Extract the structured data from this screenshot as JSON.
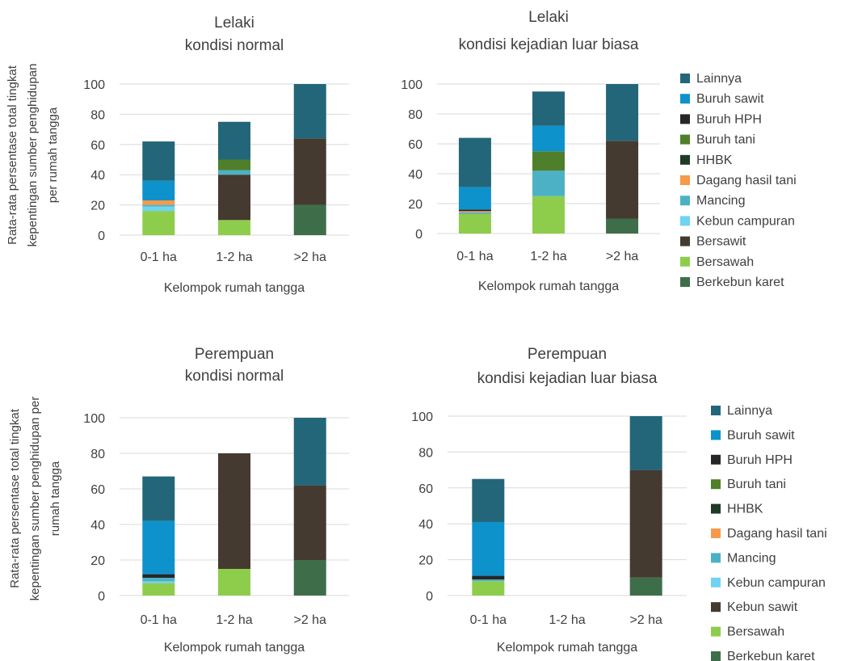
{
  "chart_data": [
    {
      "type": "bar",
      "stacked": true,
      "title": [
        "Lelaki",
        "kondisi normal"
      ],
      "xlabel": "Kelompok rumah tangga",
      "ylabel": [
        "Rata-rata persentase total tingkat",
        "kepentingan sumber penghidupan",
        "per rumah tangga"
      ],
      "ylim": [
        0,
        100
      ],
      "yticks": [
        "0",
        "20",
        "40",
        "60",
        "80",
        "100"
      ],
      "grid": true,
      "categories": [
        "0-1 ha",
        "1-2 ha",
        ">2 ha"
      ],
      "series": [
        {
          "name": "Berkebun karet",
          "values": [
            0,
            0,
            20
          ]
        },
        {
          "name": "Bersawah",
          "values": [
            16,
            10,
            0
          ]
        },
        {
          "name": "Bersawit",
          "values": [
            0,
            30,
            44
          ]
        },
        {
          "name": "Kebun campuran",
          "values": [
            3,
            0,
            0
          ]
        },
        {
          "name": "Mancing",
          "values": [
            1,
            3,
            0
          ]
        },
        {
          "name": "Dagang hasil tani",
          "values": [
            3,
            0,
            0
          ]
        },
        {
          "name": "HHBK",
          "values": [
            0,
            0,
            0
          ]
        },
        {
          "name": "Buruh tani",
          "values": [
            0,
            7,
            0
          ]
        },
        {
          "name": "Buruh HPH",
          "values": [
            0,
            0,
            0
          ]
        },
        {
          "name": "Buruh sawit",
          "values": [
            13,
            0,
            0
          ]
        },
        {
          "name": "Lainnya",
          "values": [
            26,
            25,
            36
          ]
        }
      ]
    },
    {
      "type": "bar",
      "stacked": true,
      "title": [
        "Lelaki",
        "kondisi kejadian luar biasa"
      ],
      "xlabel": "Kelompok rumah tangga",
      "ylim": [
        0,
        100
      ],
      "yticks": [
        "0",
        "20",
        "40",
        "60",
        "80",
        "100"
      ],
      "grid": true,
      "categories": [
        "0-1 ha",
        "1-2 ha",
        ">2 ha"
      ],
      "series": [
        {
          "name": "Berkebun karet",
          "values": [
            0,
            0,
            10
          ]
        },
        {
          "name": "Bersawah",
          "values": [
            13,
            25,
            0
          ]
        },
        {
          "name": "Bersawit",
          "values": [
            0,
            0,
            52
          ]
        },
        {
          "name": "Kebun campuran",
          "values": [
            0,
            0,
            0
          ]
        },
        {
          "name": "Mancing",
          "values": [
            1,
            17,
            0
          ]
        },
        {
          "name": "Dagang hasil tani",
          "values": [
            1,
            0,
            0
          ]
        },
        {
          "name": "HHBK",
          "values": [
            0,
            0,
            0
          ]
        },
        {
          "name": "Buruh tani",
          "values": [
            0,
            13,
            0
          ]
        },
        {
          "name": "Buruh HPH",
          "values": [
            1,
            0,
            0
          ]
        },
        {
          "name": "Buruh sawit",
          "values": [
            15,
            17,
            0
          ]
        },
        {
          "name": "Lainnya",
          "values": [
            33,
            23,
            38
          ]
        }
      ]
    },
    {
      "type": "bar",
      "stacked": true,
      "title": [
        "Perempuan",
        "kondisi normal"
      ],
      "xlabel": "Kelompok rumah tangga",
      "ylabel": [
        "Rata-rata persentase total tingkat",
        "kepentingan sumber penghidupan per",
        "rumah tangga"
      ],
      "ylim": [
        0,
        100
      ],
      "yticks": [
        "0",
        "20",
        "40",
        "60",
        "80",
        "100"
      ],
      "grid": true,
      "categories": [
        "0-1 ha",
        "1-2 ha",
        ">2 ha"
      ],
      "series": [
        {
          "name": "Berkebun karet",
          "values": [
            0,
            0,
            20
          ]
        },
        {
          "name": "Bersawah",
          "values": [
            7,
            15,
            0
          ]
        },
        {
          "name": "Kebun sawit",
          "values": [
            0,
            65,
            42
          ]
        },
        {
          "name": "Kebun campuran",
          "values": [
            1,
            0,
            0
          ]
        },
        {
          "name": "Mancing",
          "values": [
            2,
            0,
            0
          ]
        },
        {
          "name": "Dagang hasil tani",
          "values": [
            0,
            0,
            0
          ]
        },
        {
          "name": "HHBK",
          "values": [
            0,
            0,
            0
          ]
        },
        {
          "name": "Buruh tani",
          "values": [
            0,
            0,
            0
          ]
        },
        {
          "name": "Buruh HPH",
          "values": [
            2,
            0,
            0
          ]
        },
        {
          "name": "Buruh sawit",
          "values": [
            30,
            0,
            0
          ]
        },
        {
          "name": "Lainnya",
          "values": [
            25,
            0,
            38
          ]
        }
      ]
    },
    {
      "type": "bar",
      "stacked": true,
      "title": [
        "Perempuan",
        "kondisi kejadian luar biasa"
      ],
      "xlabel": "Kelompok rumah tangga",
      "ylim": [
        0,
        100
      ],
      "yticks": [
        "0",
        "20",
        "40",
        "60",
        "80",
        "100"
      ],
      "grid": true,
      "categories": [
        "0-1 ha",
        "1-2 ha",
        ">2 ha"
      ],
      "series": [
        {
          "name": "Berkebun karet",
          "values": [
            0,
            0,
            10
          ]
        },
        {
          "name": "Bersawah",
          "values": [
            8,
            0,
            0
          ]
        },
        {
          "name": "Kebun sawit",
          "values": [
            0,
            0,
            60
          ]
        },
        {
          "name": "Kebun campuran",
          "values": [
            0,
            0,
            0
          ]
        },
        {
          "name": "Mancing",
          "values": [
            1,
            0,
            0
          ]
        },
        {
          "name": "Dagang hasil tani",
          "values": [
            0,
            0,
            0
          ]
        },
        {
          "name": "HHBK",
          "values": [
            0,
            0,
            0
          ]
        },
        {
          "name": "Buruh tani",
          "values": [
            0,
            0,
            0
          ]
        },
        {
          "name": "Buruh HPH",
          "values": [
            2,
            0,
            0
          ]
        },
        {
          "name": "Buruh sawit",
          "values": [
            30,
            0,
            0
          ]
        },
        {
          "name": "Lainnya",
          "values": [
            24,
            0,
            30
          ]
        }
      ]
    }
  ],
  "legends": [
    {
      "placement": "right",
      "items": [
        {
          "label": "Lainnya",
          "color": "#23667a"
        },
        {
          "label": "Buruh sawit",
          "color": "#0e92cb"
        },
        {
          "label": "Buruh HPH",
          "color": "#262626"
        },
        {
          "label": "Buruh tani",
          "color": "#4f7f2a"
        },
        {
          "label": "HHBK",
          "color": "#1d3b27"
        },
        {
          "label": "Dagang hasil tani",
          "color": "#f59a4a"
        },
        {
          "label": "Mancing",
          "color": "#4cb1c5"
        },
        {
          "label": "Kebun campuran",
          "color": "#6fd3f2"
        },
        {
          "label": "Bersawit",
          "color": "#453a30"
        },
        {
          "label": "Bersawah",
          "color": "#8ecd4c"
        },
        {
          "label": "Berkebun karet",
          "color": "#3e6e49"
        }
      ]
    },
    {
      "placement": "right",
      "items": [
        {
          "label": "Lainnya",
          "color": "#23667a"
        },
        {
          "label": "Buruh sawit",
          "color": "#0e92cb"
        },
        {
          "label": "Buruh HPH",
          "color": "#262626"
        },
        {
          "label": "Buruh tani",
          "color": "#4f7f2a"
        },
        {
          "label": "HHBK",
          "color": "#1d3b27"
        },
        {
          "label": "Dagang hasil tani",
          "color": "#f59a4a"
        },
        {
          "label": "Mancing",
          "color": "#4cb1c5"
        },
        {
          "label": "Kebun campuran",
          "color": "#6fd3f2"
        },
        {
          "label": "Kebun sawit",
          "color": "#453a30"
        },
        {
          "label": "Bersawah",
          "color": "#8ecd4c"
        },
        {
          "label": "Berkebun karet",
          "color": "#3e6e49"
        }
      ]
    }
  ],
  "series_colors": {
    "Berkebun karet": "#3e6e49",
    "Bersawah": "#8ecd4c",
    "Bersawit": "#453a30",
    "Kebun sawit": "#453a30",
    "Kebun campuran": "#6fd3f2",
    "Mancing": "#4cb1c5",
    "Dagang hasil tani": "#f59a4a",
    "HHBK": "#1d3b27",
    "Buruh tani": "#4f7f2a",
    "Buruh HPH": "#262626",
    "Buruh sawit": "#0e92cb",
    "Lainnya": "#23667a"
  }
}
